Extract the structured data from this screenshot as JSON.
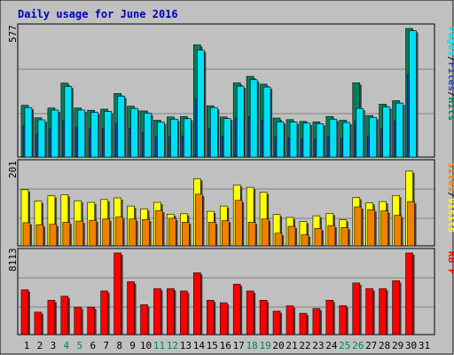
{
  "chart_data": [
    {
      "type": "bar",
      "title": "Daily usage for June 2016",
      "panel": "top",
      "ymax_label": "577",
      "ylim": [
        0,
        577
      ],
      "grid": true,
      "legend": "right",
      "categories": [
        "1",
        "2",
        "3",
        "4",
        "5",
        "6",
        "7",
        "8",
        "9",
        "10",
        "11",
        "12",
        "13",
        "14",
        "15",
        "16",
        "17",
        "18",
        "19",
        "20",
        "21",
        "22",
        "23",
        "24",
        "25",
        "26",
        "27",
        "28",
        "29",
        "30",
        "31"
      ],
      "series": [
        {
          "name": "Hits",
          "color": "#00805a",
          "values": [
            232,
            176,
            220,
            332,
            220,
            210,
            215,
            285,
            228,
            207,
            165,
            180,
            182,
            503,
            230,
            180,
            333,
            362,
            327,
            175,
            168,
            160,
            158,
            182,
            165,
            333,
            186,
            237,
            253,
            577,
            0
          ]
        },
        {
          "name": "Files",
          "color": "#2242c0",
          "values": [
            140,
            100,
            125,
            165,
            135,
            125,
            130,
            150,
            130,
            110,
            90,
            90,
            95,
            260,
            125,
            95,
            175,
            180,
            165,
            90,
            85,
            80,
            80,
            90,
            85,
            160,
            95,
            125,
            160,
            370,
            0
          ]
        },
        {
          "name": "Pages",
          "color": "#00e0f4",
          "values": [
            222,
            167,
            211,
            317,
            211,
            200,
            205,
            273,
            218,
            197,
            157,
            170,
            172,
            480,
            222,
            173,
            318,
            347,
            314,
            158,
            157,
            152,
            150,
            170,
            155,
            218,
            178,
            225,
            242,
            567,
            0
          ]
        }
      ]
    },
    {
      "type": "bar",
      "panel": "middle",
      "ymax_label": "201",
      "ylim": [
        0,
        201
      ],
      "grid": true,
      "legend": "right",
      "categories": [
        "1",
        "2",
        "3",
        "4",
        "5",
        "6",
        "7",
        "8",
        "9",
        "10",
        "11",
        "12",
        "13",
        "14",
        "15",
        "16",
        "17",
        "18",
        "19",
        "20",
        "21",
        "22",
        "23",
        "24",
        "25",
        "26",
        "27",
        "28",
        "29",
        "30",
        "31"
      ],
      "series": [
        {
          "name": "Visits",
          "color": "#ffff00",
          "values": [
            138,
            110,
            123,
            126,
            111,
            107,
            114,
            118,
            98,
            91,
            107,
            78,
            79,
            165,
            85,
            98,
            150,
            144,
            132,
            77,
            70,
            60,
            74,
            80,
            64,
            119,
            106,
            109,
            124,
            184,
            0
          ]
        },
        {
          "name": "Sites",
          "color": "#f08000",
          "values": [
            57,
            52,
            53,
            58,
            61,
            63,
            66,
            71,
            66,
            65,
            87,
            68,
            58,
            127,
            58,
            62,
            112,
            58,
            66,
            31,
            48,
            27,
            43,
            50,
            45,
            96,
            89,
            86,
            75,
            109,
            0
          ]
        }
      ]
    },
    {
      "type": "bar",
      "panel": "bottom",
      "ymax_label": "8113",
      "ylim": [
        0,
        8113
      ],
      "grid": true,
      "legend": "right",
      "categories": [
        "1",
        "2",
        "3",
        "4",
        "5",
        "6",
        "7",
        "8",
        "9",
        "10",
        "11",
        "12",
        "13",
        "14",
        "15",
        "16",
        "17",
        "18",
        "19",
        "20",
        "21",
        "22",
        "23",
        "24",
        "25",
        "26",
        "27",
        "28",
        "29",
        "30",
        "31"
      ],
      "series": [
        {
          "name": "KB F",
          "color": "#ff0000",
          "values": [
            4450,
            2230,
            3410,
            3810,
            2730,
            2730,
            4330,
            8113,
            5250,
            2970,
            4570,
            4570,
            4330,
            6140,
            3410,
            3170,
            5010,
            4330,
            3410,
            2330,
            2850,
            2110,
            2590,
            3410,
            2870,
            5130,
            4570,
            4570,
            5360,
            8113,
            0
          ]
        }
      ]
    }
  ],
  "legends": {
    "top": [
      "Pages",
      "/",
      "Files",
      "/",
      "Hits"
    ],
    "top_colors": [
      "#00e0f4",
      "#000000",
      "#2242c0",
      "#000000",
      "#00805a"
    ],
    "middle": [
      "Sites",
      "/",
      "Visits"
    ],
    "middle_colors": [
      "#f08000",
      "#000000",
      "#ffff00"
    ],
    "bottom": [
      "KB F"
    ],
    "bottom_colors": [
      "#ff0000"
    ]
  },
  "weekend_days": [
    4,
    5,
    11,
    12,
    18,
    19,
    25,
    26
  ],
  "colors": {
    "background": "#c0c0c0",
    "title": "#0000c0",
    "weekday_label": "#000000",
    "weekend_label": "#008060"
  }
}
